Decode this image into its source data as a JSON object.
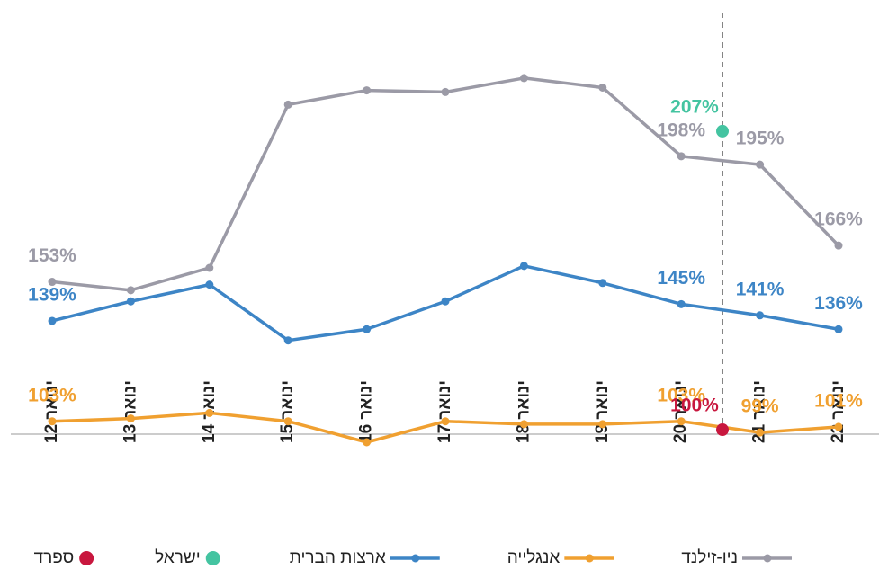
{
  "chart_data": {
    "type": "line",
    "categories": [
      "ינואר 12",
      "ינואר 13",
      "ינואר 14",
      "ינואר 15",
      "ינואר 16",
      "ינואר 17",
      "ינואר 18",
      "ינואר 19",
      "ינואר 20",
      "ינואר 21",
      "ינואר 22"
    ],
    "ylim": [
      98.4,
      254
    ],
    "series": [
      {
        "name": "ניו-זילנד",
        "color": "#9b9aa6",
        "values": [
          153,
          150,
          158,
          216.5,
          221.6,
          221,
          226,
          222.6,
          198,
          195,
          166
        ],
        "value_labels": [
          "153%",
          null,
          null,
          null,
          null,
          null,
          null,
          null,
          "198%",
          "195%",
          "166%"
        ]
      },
      {
        "name": "אנגלייה",
        "color": "#f0a030",
        "values": [
          103,
          104,
          106,
          103,
          95.5,
          103,
          102,
          102,
          103,
          99,
          101
        ],
        "value_labels": [
          "103%",
          null,
          null,
          null,
          null,
          null,
          null,
          null,
          "103%",
          "99%",
          "101%"
        ]
      },
      {
        "name": "ארצות הברית",
        "color": "#3d85c6",
        "values": [
          139,
          146,
          152,
          132,
          136,
          146,
          158.7,
          152.6,
          145,
          141,
          136
        ],
        "value_labels": [
          "139%",
          null,
          null,
          null,
          null,
          null,
          null,
          null,
          "145%",
          "141%",
          "136%"
        ]
      }
    ],
    "points": [
      {
        "name": "ישראל",
        "color": "#44c4a1",
        "value": 207,
        "value_label": "207%"
      },
      {
        "name": "ספרד",
        "color": "#c8173e",
        "value": 100,
        "value_label": "100%"
      }
    ]
  }
}
